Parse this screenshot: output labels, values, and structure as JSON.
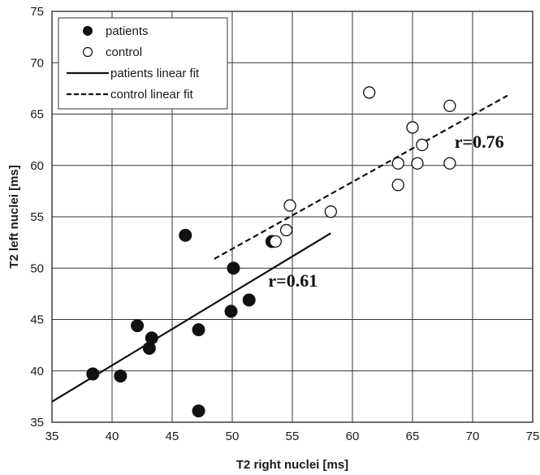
{
  "chart_data": {
    "type": "scatter",
    "xlabel": "T2 right nuclei  [ms]",
    "ylabel": "T2 left nuclei  [ms]",
    "xlim": [
      35,
      75
    ],
    "ylim": [
      35,
      75
    ],
    "xticks": [
      "35",
      "40",
      "45",
      "50",
      "55",
      "60",
      "65",
      "70",
      "75"
    ],
    "yticks": [
      "35",
      "40",
      "45",
      "50",
      "55",
      "60",
      "65",
      "70",
      "75"
    ],
    "grid": true,
    "legend_position": "top-left",
    "series": [
      {
        "name": "patients",
        "marker": "filled-circle",
        "color": "#111111",
        "points": [
          {
            "x": 38.4,
            "y": 39.7
          },
          {
            "x": 40.7,
            "y": 39.5
          },
          {
            "x": 42.1,
            "y": 44.4
          },
          {
            "x": 43.1,
            "y": 42.2
          },
          {
            "x": 43.3,
            "y": 43.2
          },
          {
            "x": 46.1,
            "y": 53.2
          },
          {
            "x": 47.2,
            "y": 44.0
          },
          {
            "x": 47.2,
            "y": 36.1
          },
          {
            "x": 49.9,
            "y": 45.8
          },
          {
            "x": 50.1,
            "y": 50.0
          },
          {
            "x": 51.4,
            "y": 46.9
          },
          {
            "x": 53.3,
            "y": 52.6
          }
        ]
      },
      {
        "name": "control",
        "marker": "open-circle",
        "color": "#111111",
        "points": [
          {
            "x": 53.6,
            "y": 52.6
          },
          {
            "x": 54.5,
            "y": 53.7
          },
          {
            "x": 54.8,
            "y": 56.1
          },
          {
            "x": 58.2,
            "y": 55.5
          },
          {
            "x": 61.4,
            "y": 67.1
          },
          {
            "x": 63.8,
            "y": 60.2
          },
          {
            "x": 63.8,
            "y": 58.1
          },
          {
            "x": 65.0,
            "y": 63.7
          },
          {
            "x": 65.4,
            "y": 60.2
          },
          {
            "x": 65.8,
            "y": 62.0
          },
          {
            "x": 68.1,
            "y": 65.8
          },
          {
            "x": 68.1,
            "y": 60.2
          }
        ]
      }
    ],
    "fits": [
      {
        "name": "patients linear fit",
        "style": "solid",
        "x": [
          35,
          58.2
        ],
        "y": [
          37.0,
          53.4
        ]
      },
      {
        "name": "control linear fit",
        "style": "dashed",
        "x": [
          48.5,
          72.9
        ],
        "y": [
          50.9,
          66.8
        ]
      }
    ],
    "annotations": [
      {
        "text": "r=0.76",
        "x": 68.5,
        "y": 61.7
      },
      {
        "text": "r=0.61",
        "x": 53.0,
        "y": 48.2
      }
    ]
  }
}
